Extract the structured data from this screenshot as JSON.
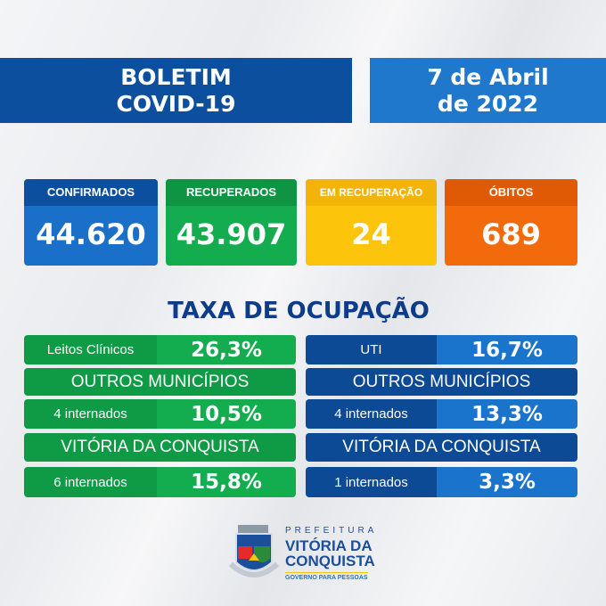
{
  "header": {
    "title_line1": "BOLETIM",
    "title_line2": "COVID-19",
    "date_line1": "7 de Abril",
    "date_line2": "de 2022"
  },
  "cards": [
    {
      "label": "CONFIRMADOS",
      "value": "44.620",
      "color": "#1a6fc9",
      "header_color": "#0c4f9f"
    },
    {
      "label": "RECUPERADOS",
      "value": "43.907",
      "color": "#13ad4f",
      "header_color": "#0f9443"
    },
    {
      "label": "EM RECUPERAÇÃO",
      "value": "24",
      "color": "#fcc40a",
      "header_color": "#f2b408"
    },
    {
      "label": "ÓBITOS",
      "value": "689",
      "color": "#f26a0c",
      "header_color": "#e05a05"
    }
  ],
  "occupancy": {
    "title": "TAXA DE OCUPAÇÃO",
    "clinical": {
      "label": "Leitos Clínicos",
      "value": "26,3%",
      "others_label": "OUTROS MUNICÍPIOS",
      "others_count": "4 internados",
      "others_value": "10,5%",
      "city_label": "VITÓRIA DA CONQUISTA",
      "city_count": "6 internados",
      "city_value": "15,8%"
    },
    "icu": {
      "label": "UTI",
      "value": "16,7%",
      "others_label": "OUTROS MUNICÍPIOS",
      "others_count": "4 internados",
      "others_value": "13,3%",
      "city_label": "VITÓRIA DA CONQUISTA",
      "city_count": "1 internados",
      "city_value": "3,3%"
    }
  },
  "logo": {
    "line1": "PREFEITURA",
    "line2": "VITÓRIA DA",
    "line3": "CONQUISTA",
    "tagline": "GOVERNO PARA PESSOAS"
  }
}
